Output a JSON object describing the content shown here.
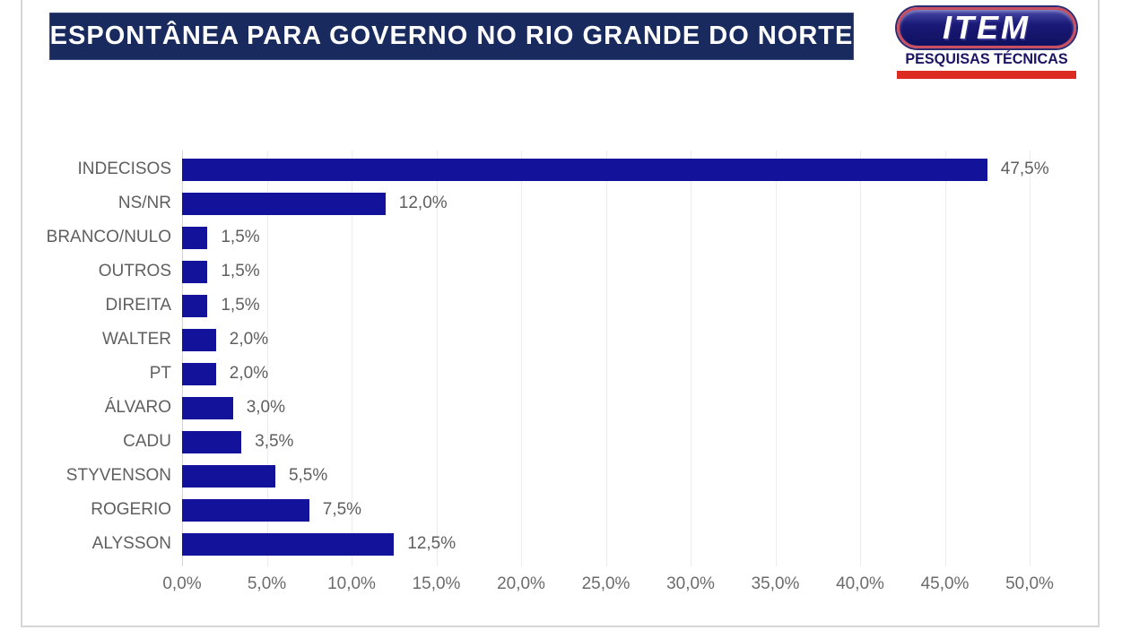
{
  "header": {
    "title": "ESPONTÂNEA PARA GOVERNO NO RIO GRANDE DO NORTE",
    "logo": {
      "brand": "ITEM",
      "subtitle": "PESQUISAS TÉCNICAS"
    }
  },
  "colors": {
    "banner_bg": "#192a5e",
    "bar": "#12129b",
    "label_gray": "#5f5f5f",
    "grid": "#ececec",
    "axis": "#d4d4d4",
    "logo_navy": "#1a1464",
    "logo_red": "#dc2b20"
  },
  "chart_data": {
    "type": "bar",
    "orientation": "horizontal",
    "title": "ESPONTÂNEA PARA GOVERNO NO RIO GRANDE DO NORTE",
    "xlabel": "",
    "ylabel": "",
    "categories": [
      "INDECISOS",
      "NS/NR",
      "BRANCO/NULO",
      "OUTROS",
      "DIREITA",
      "WALTER",
      "PT",
      "ÁLVARO",
      "CADU",
      "STYVENSON",
      "ROGERIO",
      "ALYSSON"
    ],
    "values": [
      47.5,
      12.0,
      1.5,
      1.5,
      1.5,
      2.0,
      2.0,
      3.0,
      3.5,
      5.5,
      7.5,
      12.5
    ],
    "value_labels": [
      "47,5%",
      "12,0%",
      "1,5%",
      "1,5%",
      "1,5%",
      "2,0%",
      "2,0%",
      "3,0%",
      "3,5%",
      "5,5%",
      "7,5%",
      "12,5%"
    ],
    "xlim": [
      0,
      50
    ],
    "x_ticks": [
      0,
      5,
      10,
      15,
      20,
      25,
      30,
      35,
      40,
      45,
      50
    ],
    "x_tick_labels": [
      "0,0%",
      "5,0%",
      "10,0%",
      "15,0%",
      "20,0%",
      "25,0%",
      "30,0%",
      "35,0%",
      "40,0%",
      "45,0%",
      "50,0%"
    ],
    "grid": true,
    "legend": false
  }
}
